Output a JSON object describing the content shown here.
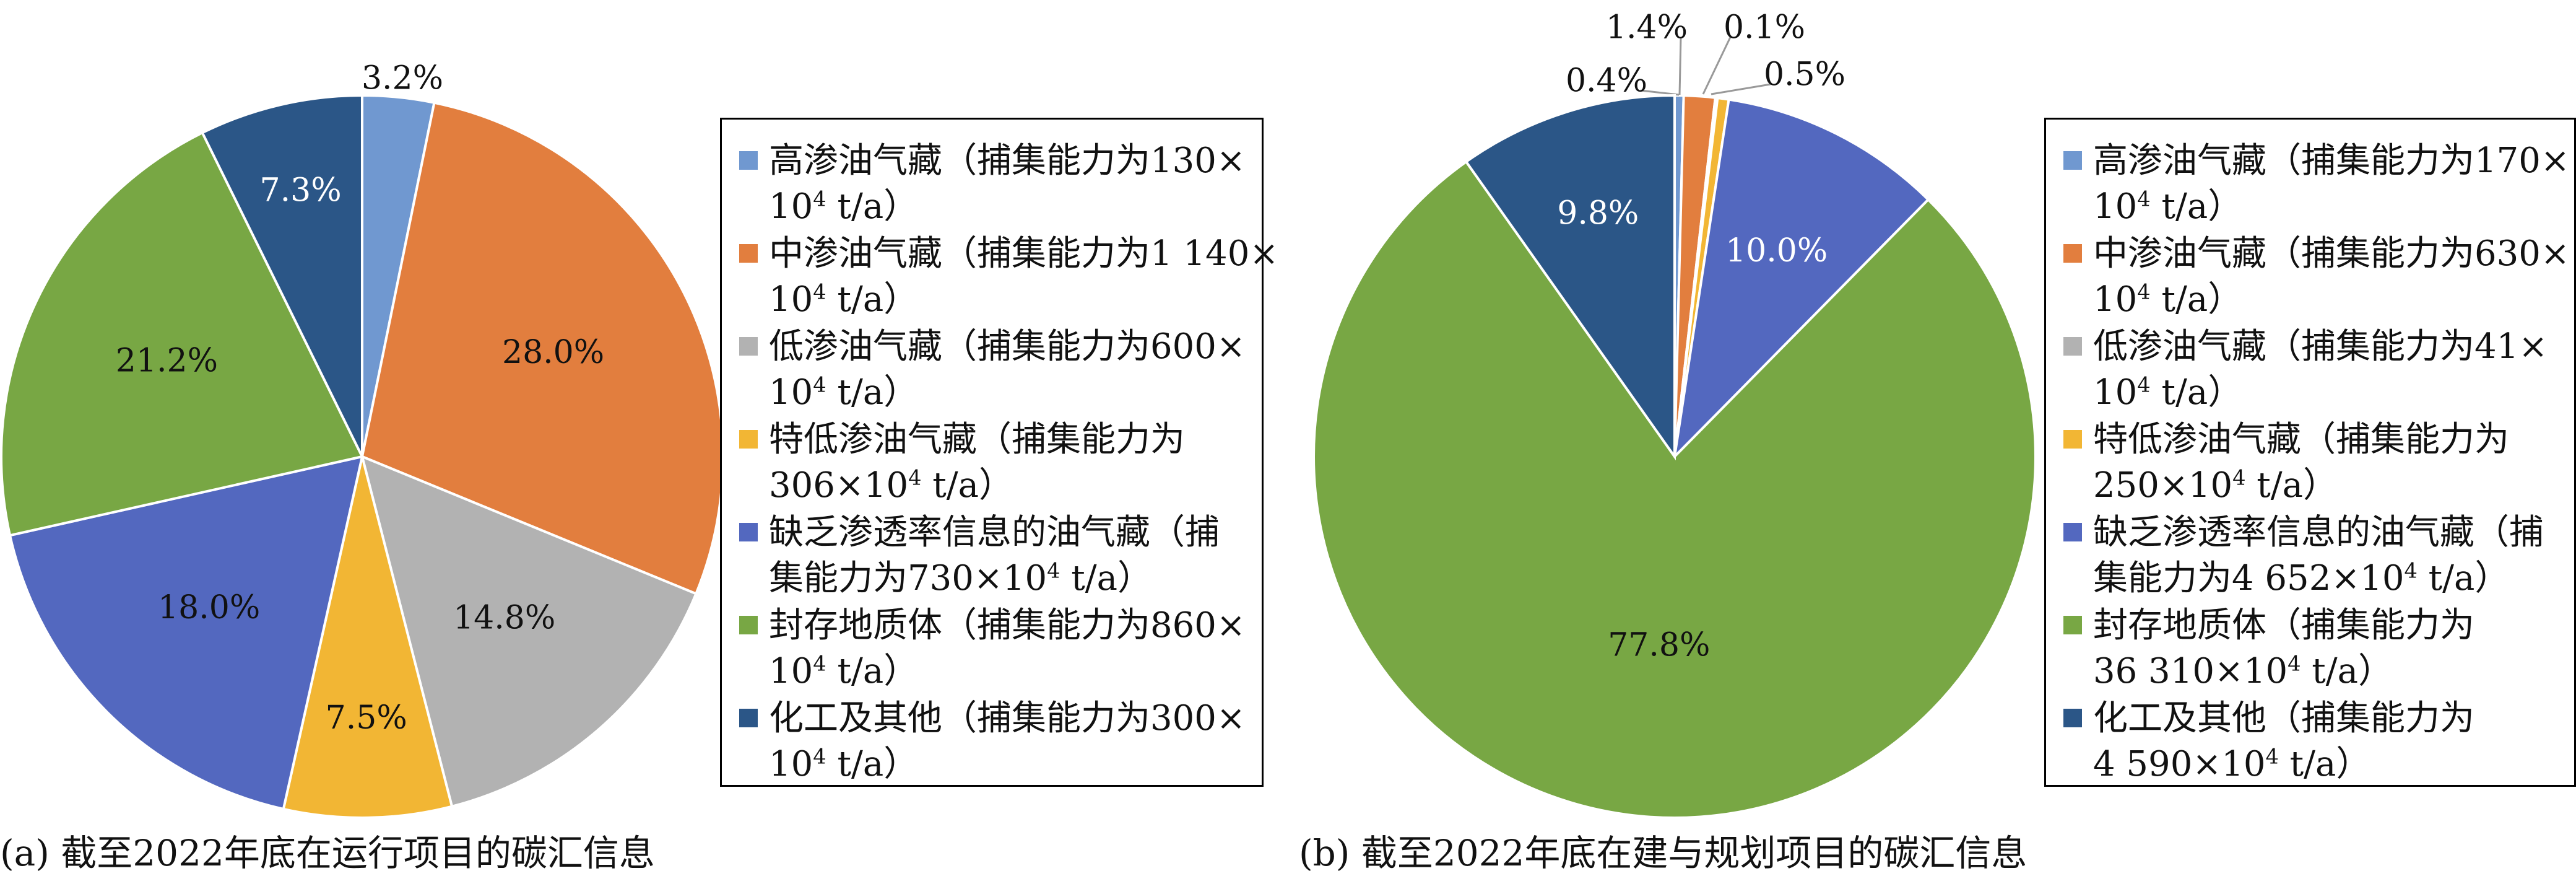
{
  "chart_data": [
    {
      "type": "pie",
      "title": "(a) 截至2022年底在运行项目的碳汇信息",
      "start_angle_deg": 0,
      "direction": "clockwise",
      "slices": [
        {
          "label": "高渗油气藏（捕集能力为130×10⁴ t/a）",
          "value": 3.2,
          "text": "3.2%",
          "color": "#7098d0"
        },
        {
          "label": "中渗油气藏（捕集能力为1 140×10⁴ t/a）",
          "value": 28.0,
          "text": "28.0%",
          "color": "#e27e3e"
        },
        {
          "label": "低渗油气藏（捕集能力为600×10⁴ t/a）",
          "value": 14.8,
          "text": "14.8%",
          "color": "#b2b2b2"
        },
        {
          "label": "特低渗油气藏（捕集能力为306×10⁴ t/a）",
          "value": 7.5,
          "text": "7.5%",
          "color": "#f2b634"
        },
        {
          "label": "缺乏渗透率信息的油气藏（捕集能力为730×10⁴ t/a）",
          "value": 18.0,
          "text": "18.0%",
          "color": "#5368bf"
        },
        {
          "label": "封存地质体（捕集能力为860×10⁴ t/a）",
          "value": 21.2,
          "text": "21.2%",
          "color": "#78a744"
        },
        {
          "label": "化工及其他（捕集能力为300×10⁴ t/a）",
          "value": 7.3,
          "text": "7.3%",
          "color": "#2b5687"
        }
      ],
      "legend_position": "right"
    },
    {
      "type": "pie",
      "title": "(b) 截至2022年底在建与规划项目的碳汇信息",
      "start_angle_deg": 0,
      "direction": "clockwise",
      "slices": [
        {
          "label": "高渗油气藏（捕集能力为170×10⁴ t/a）",
          "value": 0.4,
          "text": "0.4%",
          "color": "#7098d0"
        },
        {
          "label": "中渗油气藏（捕集能力为630×10⁴ t/a）",
          "value": 1.4,
          "text": "1.4%",
          "color": "#e27e3e"
        },
        {
          "label": "低渗油气藏（捕集能力为41×10⁴ t/a）",
          "value": 0.1,
          "text": "0.1%",
          "color": "#b2b2b2"
        },
        {
          "label": "特低渗油气藏（捕集能力为250×10⁴ t/a）",
          "value": 0.5,
          "text": "0.5%",
          "color": "#f2b634"
        },
        {
          "label": "缺乏渗透率信息的油气藏（捕集能力为4 652×10⁴ t/a）",
          "value": 10.0,
          "text": "10.0%",
          "color": "#5368bf"
        },
        {
          "label": "封存地质体（捕集能力为36 310×10⁴ t/a）",
          "value": 77.8,
          "text": "77.8%",
          "color": "#78a744"
        },
        {
          "label": "化工及其他（捕集能力为4 590×10⁴ t/a）",
          "value": 9.8,
          "text": "9.8%",
          "color": "#2b5687"
        }
      ],
      "legend_position": "right"
    }
  ],
  "legends": [
    {
      "items": [
        {
          "l1": "高渗油气藏（捕集能力为130×",
          "l2": "10",
          "sup": "4",
          "l2b": " t/a）"
        },
        {
          "l1": "中渗油气藏（捕集能力为1 140×",
          "l2": "10",
          "sup": "4",
          "l2b": " t/a）"
        },
        {
          "l1": "低渗油气藏（捕集能力为600×",
          "l2": "10",
          "sup": "4",
          "l2b": " t/a）"
        },
        {
          "l1": "特低渗油气藏（捕集能力为",
          "l2": "306×10",
          "sup": "4",
          "l2b": " t/a）"
        },
        {
          "l1": "缺乏渗透率信息的油气藏（捕",
          "l2": "集能力为730×10",
          "sup": "4",
          "l2b": " t/a）"
        },
        {
          "l1": "封存地质体（捕集能力为860×",
          "l2": "10",
          "sup": "4",
          "l2b": " t/a）"
        },
        {
          "l1": "化工及其他（捕集能力为300×",
          "l2": "10",
          "sup": "4",
          "l2b": " t/a）"
        }
      ]
    },
    {
      "items": [
        {
          "l1": "高渗油气藏（捕集能力为170×",
          "l2": "10",
          "sup": "4",
          "l2b": " t/a）"
        },
        {
          "l1": "中渗油气藏（捕集能力为630×",
          "l2": "10",
          "sup": "4",
          "l2b": " t/a）"
        },
        {
          "l1": "低渗油气藏（捕集能力为41×",
          "l2": "10",
          "sup": "4",
          "l2b": " t/a）"
        },
        {
          "l1": "特低渗油气藏（捕集能力为",
          "l2": "250×10",
          "sup": "4",
          "l2b": " t/a）"
        },
        {
          "l1": "缺乏渗透率信息的油气藏（捕",
          "l2": "集能力为4 652×10",
          "sup": "4",
          "l2b": " t/a）"
        },
        {
          "l1": "封存地质体（捕集能力为",
          "l2": "36 310×10",
          "sup": "4",
          "l2b": " t/a）"
        },
        {
          "l1": "化工及其他（捕集能力为",
          "l2": "4 590×10",
          "sup": "4",
          "l2b": " t/a）"
        }
      ]
    }
  ]
}
